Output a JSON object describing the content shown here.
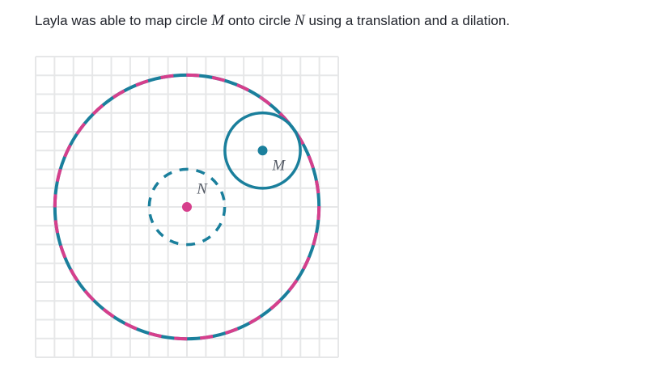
{
  "question": {
    "part1": "Layla was able to map circle ",
    "var_m": "M",
    "part2": " onto circle ",
    "var_n": "N",
    "part3": " using a translation and a dilation."
  },
  "figure": {
    "grid": {
      "columns": 16,
      "rows": 16
    },
    "circle_m": {
      "label": "M",
      "center": [
        12,
        11
      ],
      "radius": 2
    },
    "circle_n": {
      "label": "N",
      "center": [
        8,
        8
      ],
      "radius": 2
    },
    "large_circle": {
      "center": [
        8,
        8
      ],
      "radius": 7
    },
    "colors": {
      "teal": "#1a7f9c",
      "pink": "#d63f8c",
      "grid": "#e6e7e8"
    }
  }
}
